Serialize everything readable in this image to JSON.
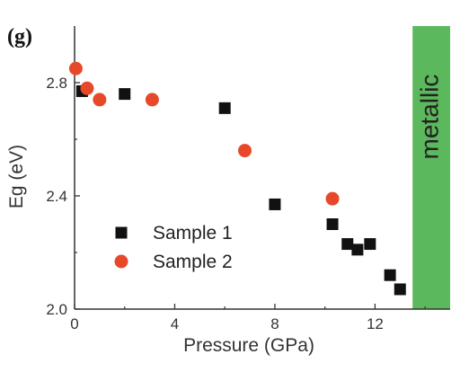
{
  "chart_data": {
    "type": "scatter",
    "panel_label": "(g)",
    "xlabel": "Pressure (GPa)",
    "ylabel": "Eg (eV)",
    "xlim": [
      0,
      15
    ],
    "ylim": [
      2.0,
      3.0
    ],
    "xticks": [
      0,
      4,
      8,
      12
    ],
    "yticks": [
      2.0,
      2.4,
      2.8
    ],
    "xtick_labels": [
      "0",
      "4",
      "8",
      "12"
    ],
    "ytick_labels": [
      "2.0",
      "2.4",
      "2.8"
    ],
    "grid": false,
    "legend_position": "lower-left",
    "region": {
      "label": "metallic",
      "x_start": 13.5,
      "x_end": 15,
      "color": "#5cb85c"
    },
    "series": [
      {
        "name": "Sample 1",
        "marker": "square",
        "color": "#111111",
        "x": [
          0.3,
          2.0,
          6.0,
          8.0,
          10.3,
          10.9,
          11.3,
          11.8,
          12.6,
          13.0
        ],
        "y": [
          2.77,
          2.76,
          2.71,
          2.37,
          2.3,
          2.23,
          2.21,
          2.23,
          2.12,
          2.07
        ]
      },
      {
        "name": "Sample 2",
        "marker": "circle",
        "color": "#e8482a",
        "x": [
          0.05,
          0.5,
          1.0,
          3.1,
          6.8,
          10.3
        ],
        "y": [
          2.85,
          2.78,
          2.74,
          2.74,
          2.56,
          2.39
        ]
      }
    ]
  }
}
